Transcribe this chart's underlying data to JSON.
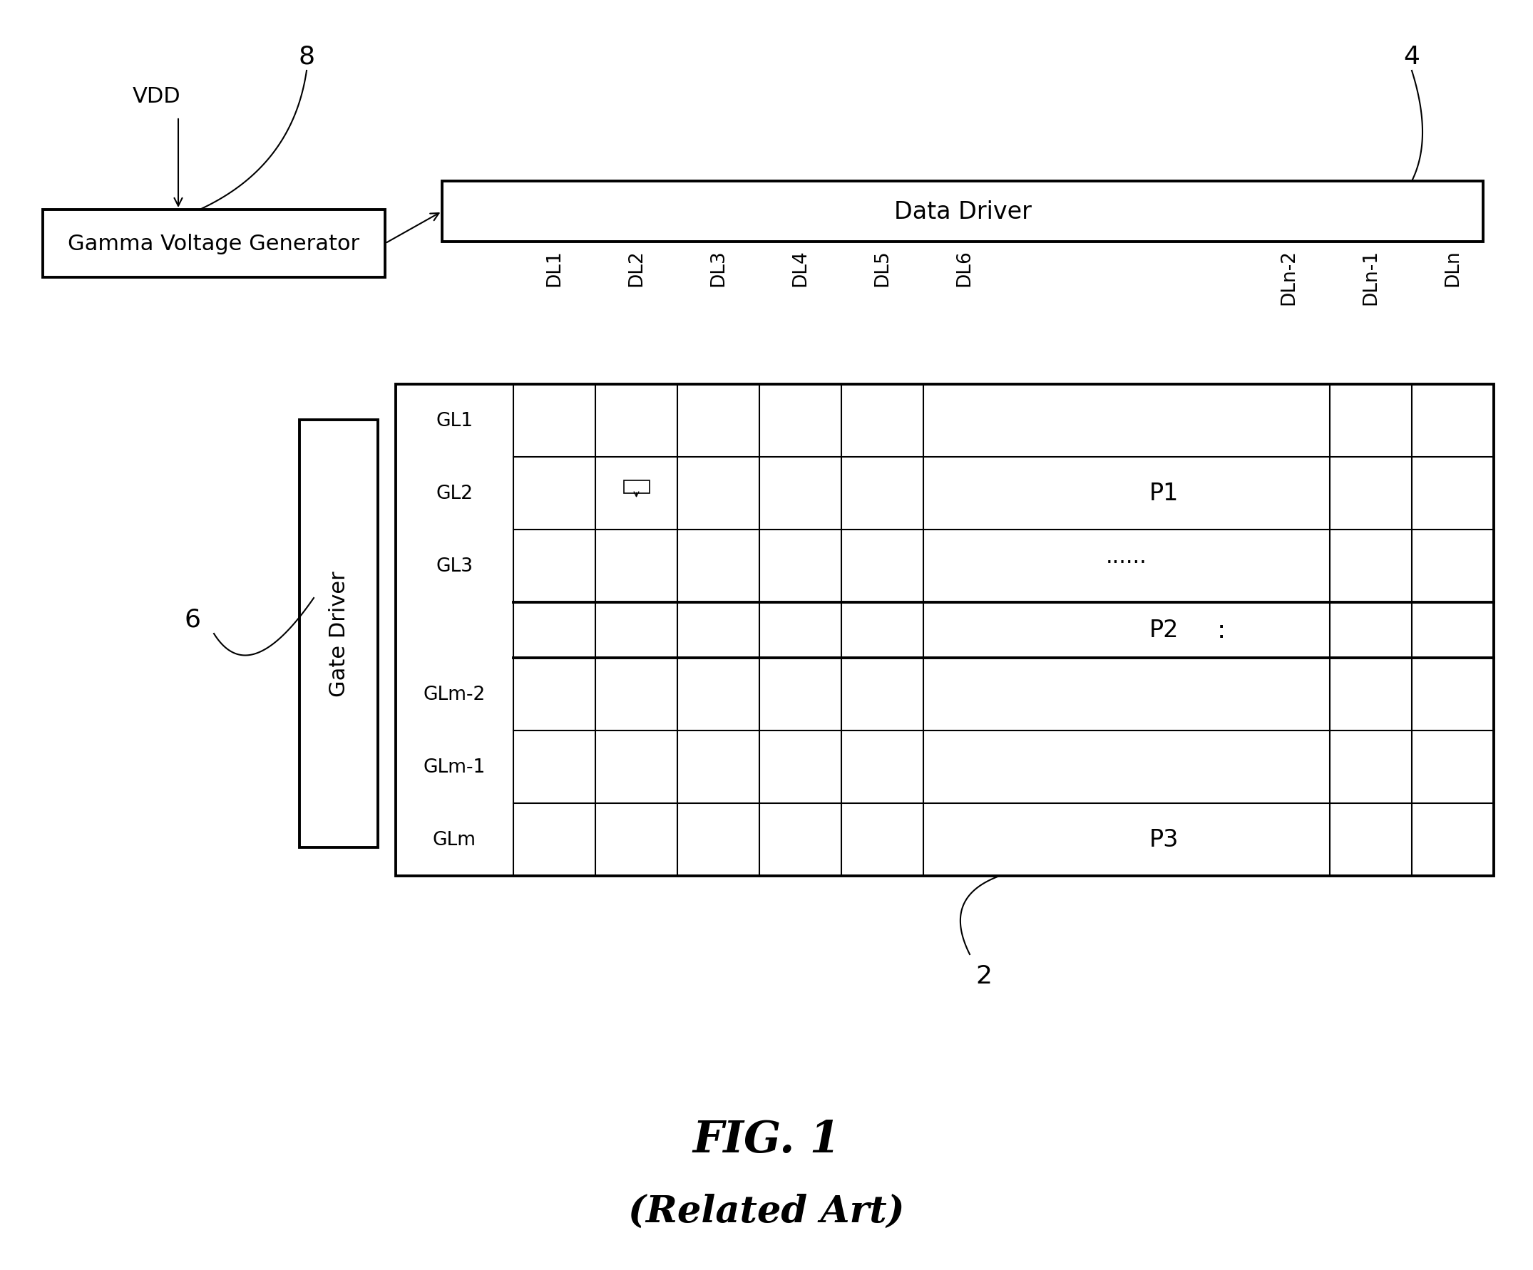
{
  "bg_color": "#ffffff",
  "title": "FIG. 1",
  "subtitle": "(Related Art)",
  "label_8": "8",
  "label_4": "4",
  "label_6": "6",
  "label_2": "2",
  "vdd_label": "VDD",
  "gamma_box_label": "Gamma Voltage Generator",
  "data_driver_label": "Data Driver",
  "gate_driver_label": "Gate Driver",
  "dl_labels": [
    "DL1",
    "DL2",
    "DL3",
    "DL4",
    "DL5",
    "DL6",
    "DLn-2",
    "DLn-1",
    "DLn"
  ],
  "gl_labels": [
    "GL1",
    "GL2",
    "GL3",
    "GLm-2",
    "GLm-1",
    "GLm"
  ],
  "p1_text": "P1",
  "p2_text": "P2",
  "p3_text": "P3",
  "dots_h": "......",
  "dots_v": ":",
  "lw_thick": 2.8,
  "lw_med": 2.0,
  "lw_thin": 1.5,
  "fs_main": 22,
  "fs_small": 19,
  "fs_title": 44,
  "fs_subtitle": 38
}
